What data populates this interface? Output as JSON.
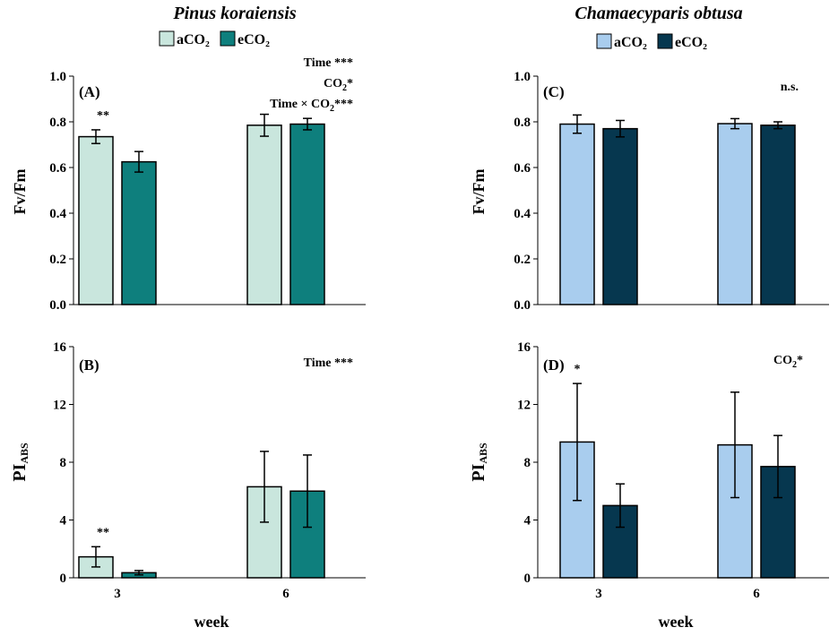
{
  "species": [
    {
      "name": "Pinus koraiensis",
      "colors": {
        "aCO2": "#c9e6dd",
        "eCO2": "#0e7f7d"
      }
    },
    {
      "name": "Chamaecyparis obtusa",
      "colors": {
        "aCO2": "#a9cdee",
        "eCO2": "#06374f"
      }
    }
  ],
  "legend": {
    "labels": [
      "aCO₂",
      "eCO₂"
    ]
  },
  "shared_xlabel": "week",
  "chart_data": [
    {
      "type": "bar",
      "panel": "A",
      "species": "Pinus koraiensis",
      "ylabel": "Fv/Fm",
      "ylim": [
        0,
        1.0
      ],
      "yticks": [
        0.0,
        0.2,
        0.4,
        0.6,
        0.8,
        1.0
      ],
      "tick_decimals": 1,
      "categories": [
        "3",
        "6"
      ],
      "series": [
        {
          "name": "aCO₂",
          "values": [
            0.735,
            0.785
          ],
          "errors": [
            0.03,
            0.048
          ]
        },
        {
          "name": "eCO₂",
          "values": [
            0.625,
            0.79
          ],
          "errors": [
            0.045,
            0.025
          ]
        }
      ],
      "annotations": {
        "group": [
          "**",
          ""
        ],
        "stats": [
          "Time ***",
          "CO₂*",
          "Time × CO₂***"
        ]
      }
    },
    {
      "type": "bar",
      "panel": "B",
      "species": "Pinus koraiensis",
      "ylabel": "PI_ABS",
      "ylim": [
        0,
        16
      ],
      "yticks": [
        0,
        4,
        8,
        12,
        16
      ],
      "tick_decimals": 0,
      "categories": [
        "3",
        "6"
      ],
      "series": [
        {
          "name": "aCO₂",
          "values": [
            1.45,
            6.3
          ],
          "errors": [
            0.7,
            2.45
          ]
        },
        {
          "name": "eCO₂",
          "values": [
            0.35,
            6.0
          ],
          "errors": [
            0.15,
            2.5
          ]
        }
      ],
      "annotations": {
        "group": [
          "**",
          ""
        ],
        "stats": [
          "Time ***"
        ]
      }
    },
    {
      "type": "bar",
      "panel": "C",
      "species": "Chamaecyparis obtusa",
      "ylabel": "Fv/Fm",
      "ylim": [
        0,
        1.0
      ],
      "yticks": [
        0.0,
        0.2,
        0.4,
        0.6,
        0.8,
        1.0
      ],
      "tick_decimals": 1,
      "categories": [
        "3",
        "6"
      ],
      "series": [
        {
          "name": "aCO₂",
          "values": [
            0.79,
            0.792
          ],
          "errors": [
            0.04,
            0.022
          ]
        },
        {
          "name": "eCO₂",
          "values": [
            0.77,
            0.785
          ],
          "errors": [
            0.036,
            0.015
          ]
        }
      ],
      "annotations": {
        "group": [
          "",
          ""
        ],
        "stats": [
          "n.s."
        ]
      }
    },
    {
      "type": "bar",
      "panel": "D",
      "species": "Chamaecyparis obtusa",
      "ylabel": "PI_ABS",
      "ylim": [
        0,
        16
      ],
      "yticks": [
        0,
        4,
        8,
        12,
        16
      ],
      "tick_decimals": 0,
      "categories": [
        "3",
        "6"
      ],
      "series": [
        {
          "name": "aCO₂",
          "values": [
            9.4,
            9.2
          ],
          "errors": [
            4.05,
            3.65
          ]
        },
        {
          "name": "eCO₂",
          "values": [
            5.0,
            7.7
          ],
          "errors": [
            1.5,
            2.15
          ]
        }
      ],
      "annotations": {
        "group": [
          "*",
          ""
        ],
        "stats": [
          "CO₂*"
        ]
      }
    }
  ]
}
